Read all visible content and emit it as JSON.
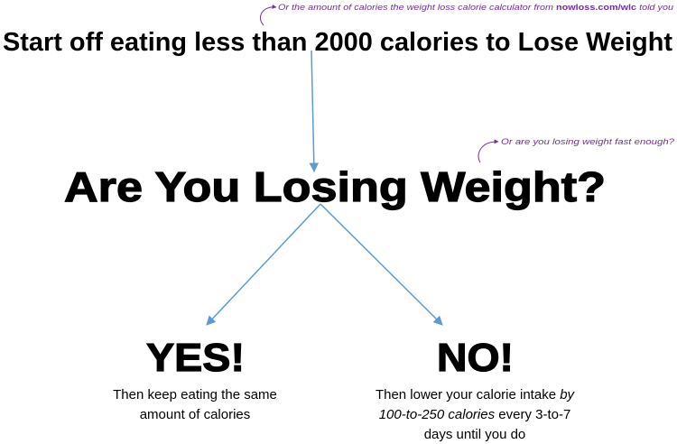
{
  "note_top": [
    "Or the amount of calories the weight loss calorie calculator from ",
    "nowloss.com/wlc",
    " told you"
  ],
  "title": "Start off eating less than 2000 calories to Lose Weight",
  "question": "Are You Losing Weight?",
  "note_question": "Or are you losing weight fast enough?",
  "yes": {
    "label": "YES!",
    "lines": [
      "Then keep eating the same",
      "amount of calories"
    ]
  },
  "no": {
    "label": "NO!",
    "lines": [
      [
        "Then lower your calorie intake ",
        "by"
      ],
      [
        "100-to-250 calories",
        " every 3-to-7"
      ],
      [
        "days until you do"
      ]
    ]
  }
}
